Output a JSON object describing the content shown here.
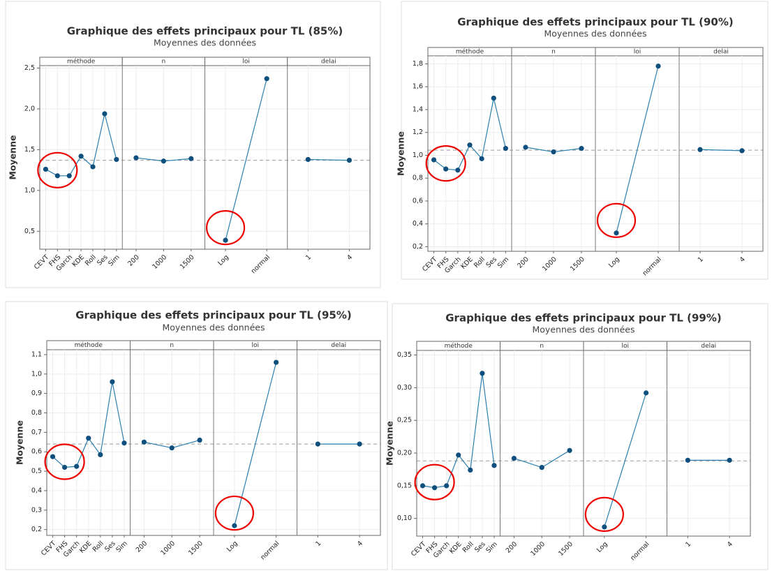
{
  "chart_data": [
    {
      "type": "main-effects",
      "title": "Graphique des effets principaux pour TL (85%)",
      "subtitle": "Moyennes des données",
      "ylabel": "Moyenne",
      "ylim": [
        0.28,
        2.53
      ],
      "yticks": [
        {
          "value": 0.5,
          "label": "0,5"
        },
        {
          "value": 1,
          "label": "1,0"
        },
        {
          "value": 1.5,
          "label": "1,5"
        },
        {
          "value": 2,
          "label": "2,0"
        },
        {
          "value": 2.5,
          "label": "2,5"
        }
      ],
      "reference": 1.37,
      "grid": true,
      "color": "#0e4f7d",
      "panels": [
        {
          "name": "méthode",
          "categories": [
            "CEVT",
            "FHS",
            "Garch",
            "KDE",
            "Roll",
            "Ses",
            "Sim"
          ],
          "values": [
            1.26,
            1.18,
            1.18,
            1.42,
            1.29,
            1.94,
            1.38
          ]
        },
        {
          "name": "n",
          "categories": [
            "200",
            "1000",
            "1500"
          ],
          "values": [
            1.4,
            1.36,
            1.39
          ]
        },
        {
          "name": "loi",
          "categories": [
            "Log",
            "normal"
          ],
          "values": [
            0.39,
            2.37
          ]
        },
        {
          "name": "delai",
          "categories": [
            "1",
            "4"
          ],
          "values": [
            1.38,
            1.37
          ]
        }
      ]
    },
    {
      "type": "main-effects",
      "title": "Graphique des effets principaux pour TL (90%)",
      "subtitle": "Moyennes des données",
      "ylabel": "Moyenne",
      "ylim": [
        0.16,
        1.87
      ],
      "yticks": [
        {
          "value": 0.2,
          "label": "0,2"
        },
        {
          "value": 0.4,
          "label": "0,4"
        },
        {
          "value": 0.6,
          "label": "0,6"
        },
        {
          "value": 0.8,
          "label": "0,8"
        },
        {
          "value": 1,
          "label": "1,0"
        },
        {
          "value": 1.2,
          "label": "1,2"
        },
        {
          "value": 1.4,
          "label": "1,4"
        },
        {
          "value": 1.6,
          "label": "1,6"
        },
        {
          "value": 1.8,
          "label": "1,8"
        }
      ],
      "reference": 1.045,
      "grid": true,
      "color": "#0e4f7d",
      "panels": [
        {
          "name": "méthode",
          "categories": [
            "CEVT",
            "FHS",
            "Garch",
            "KDE",
            "Roll",
            "Ses",
            "Sim"
          ],
          "values": [
            0.96,
            0.88,
            0.87,
            1.09,
            0.97,
            1.5,
            1.06
          ]
        },
        {
          "name": "n",
          "categories": [
            "200",
            "1000",
            "1500"
          ],
          "values": [
            1.07,
            1.03,
            1.06
          ]
        },
        {
          "name": "loi",
          "categories": [
            "Log",
            "normal"
          ],
          "values": [
            0.32,
            1.78
          ]
        },
        {
          "name": "delai",
          "categories": [
            "1",
            "4"
          ],
          "values": [
            1.05,
            1.04
          ]
        }
      ]
    },
    {
      "type": "main-effects",
      "title": "Graphique des effets principaux pour TL (95%)",
      "subtitle": "Moyennes des données",
      "ylabel": "Moyenne",
      "ylim": [
        0.17,
        1.125
      ],
      "yticks": [
        {
          "value": 0.2,
          "label": "0,2"
        },
        {
          "value": 0.3,
          "label": "0,3"
        },
        {
          "value": 0.4,
          "label": "0,4"
        },
        {
          "value": 0.5,
          "label": "0,5"
        },
        {
          "value": 0.6,
          "label": "0,6"
        },
        {
          "value": 0.7,
          "label": "0,7"
        },
        {
          "value": 0.8,
          "label": "0,8"
        },
        {
          "value": 0.9,
          "label": "0,9"
        },
        {
          "value": 1,
          "label": "1,0"
        },
        {
          "value": 1.1,
          "label": "1,1"
        }
      ],
      "reference": 0.64,
      "grid": true,
      "color": "#0e4f7d",
      "panels": [
        {
          "name": "méthode",
          "categories": [
            "CEVT",
            "FHS",
            "Garch",
            "KDE",
            "Roll",
            "Ses",
            "Sim"
          ],
          "values": [
            0.575,
            0.52,
            0.525,
            0.67,
            0.585,
            0.96,
            0.645
          ]
        },
        {
          "name": "n",
          "categories": [
            "200",
            "1000",
            "1500"
          ],
          "values": [
            0.65,
            0.62,
            0.66
          ]
        },
        {
          "name": "loi",
          "categories": [
            "Log",
            "normal"
          ],
          "values": [
            0.22,
            1.06
          ]
        },
        {
          "name": "delai",
          "categories": [
            "1",
            "4"
          ],
          "values": [
            0.64,
            0.64
          ]
        }
      ]
    },
    {
      "type": "main-effects",
      "title": "Graphique des effets principaux pour TL (99%)",
      "subtitle": "Moyennes des données",
      "ylabel": "Moyenne",
      "ylim": [
        0.073,
        0.357
      ],
      "yticks": [
        {
          "value": 0.1,
          "label": "0,10"
        },
        {
          "value": 0.15,
          "label": "0,15"
        },
        {
          "value": 0.2,
          "label": "0,20"
        },
        {
          "value": 0.25,
          "label": "0,25"
        },
        {
          "value": 0.3,
          "label": "0,30"
        },
        {
          "value": 0.35,
          "label": "0,35"
        }
      ],
      "reference": 0.188,
      "grid": true,
      "color": "#0e4f7d",
      "panels": [
        {
          "name": "méthode",
          "categories": [
            "CEVT",
            "FHS",
            "Garch",
            "KDE",
            "Roll",
            "Ses",
            "Sim"
          ],
          "values": [
            0.15,
            0.147,
            0.15,
            0.197,
            0.174,
            0.322,
            0.181
          ]
        },
        {
          "name": "n",
          "categories": [
            "200",
            "1000",
            "1500"
          ],
          "values": [
            0.192,
            0.178,
            0.204
          ]
        },
        {
          "name": "loi",
          "categories": [
            "Log",
            "normal"
          ],
          "values": [
            0.087,
            0.292
          ]
        },
        {
          "name": "delai",
          "categories": [
            "1",
            "4"
          ],
          "values": [
            0.189,
            0.189
          ]
        }
      ]
    }
  ]
}
